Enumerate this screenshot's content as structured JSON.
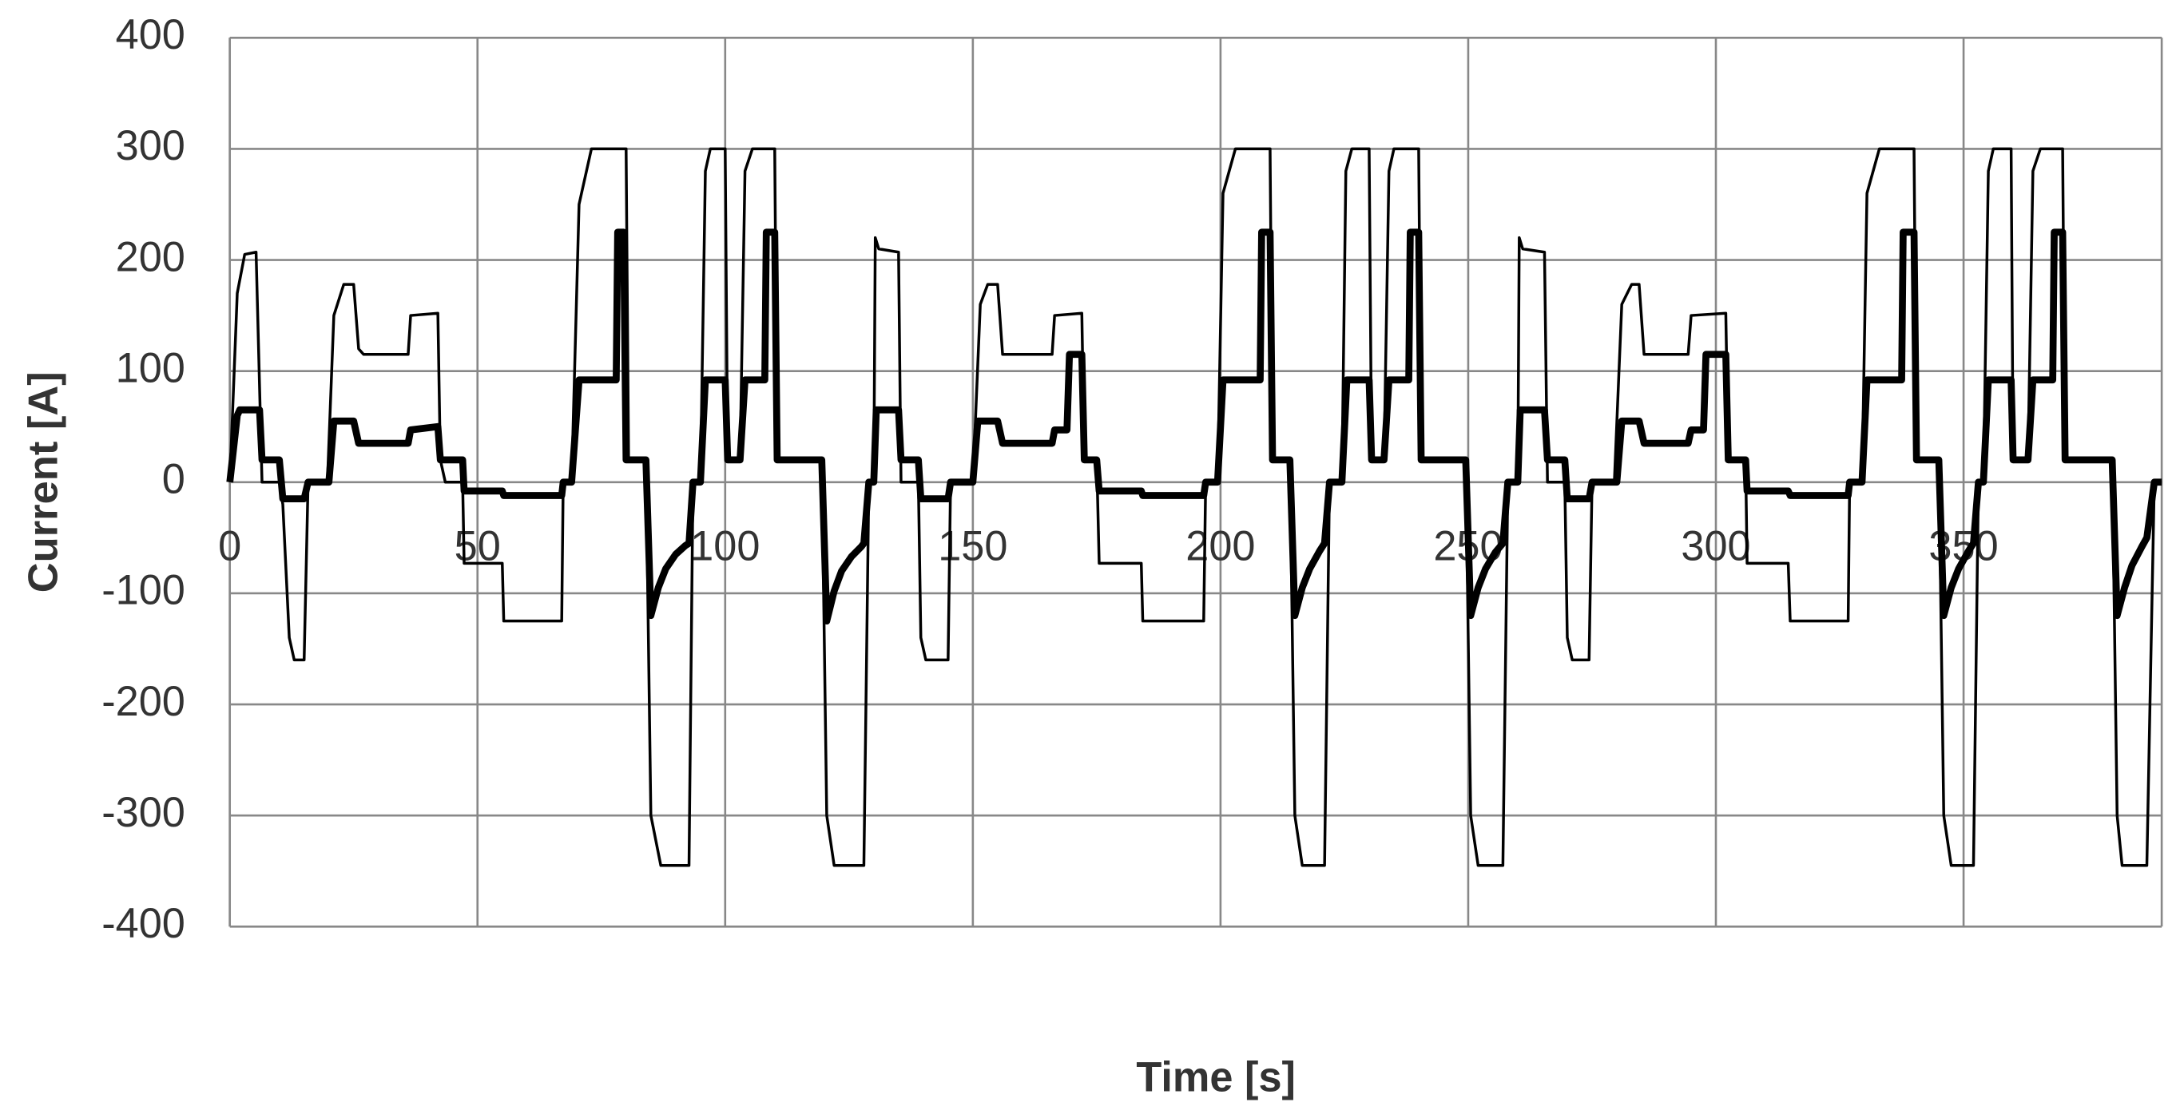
{
  "chart_data": {
    "type": "line",
    "x_label": "Time [s]",
    "y_label": "Current [A]",
    "xlim": [
      0,
      390
    ],
    "ylim": [
      -400,
      400
    ],
    "xticks": [
      0,
      50,
      100,
      150,
      200,
      250,
      300,
      350
    ],
    "yticks": [
      -400,
      -300,
      -200,
      -100,
      0,
      100,
      200,
      300,
      400
    ],
    "grid": true,
    "series": [
      {
        "color": "#000000",
        "line_width": 2,
        "x": [
          0,
          1.5,
          3,
          5.3,
          6.5,
          10,
          10.7,
          12,
          13,
          15,
          15.8,
          19.7,
          21,
          23,
          25,
          26,
          27,
          36,
          36.5,
          42,
          42.5,
          43.5,
          47,
          47.3,
          55,
          55.3,
          67,
          67.3,
          69,
          70.5,
          73,
          80,
          80.5,
          84,
          85,
          87,
          92.7,
          93.5,
          95,
          96,
          97,
          100,
          100.5,
          103,
          104,
          105.5,
          110,
          110.5,
          119.5,
          120.5,
          122,
          128,
          129,
          130,
          130.3,
          131,
          135,
          135.5,
          139,
          139.5,
          140.5,
          145,
          145.5,
          150,
          151.5,
          153,
          155,
          156,
          166,
          166.5,
          172,
          172.5,
          175,
          175.5,
          184,
          184.3,
          196.6,
          197,
          199.4,
          200.5,
          203,
          210,
          210.5,
          214,
          215,
          216.5,
          221,
          222,
          224.5,
          225.3,
          226.5,
          230,
          230.5,
          233,
          234,
          235,
          240,
          240.5,
          249.5,
          250.5,
          252,
          257,
          258,
          260,
          260.3,
          261,
          265.4,
          266,
          269.5,
          270,
          271,
          274.4,
          275,
          279.5,
          281,
          283,
          284.5,
          285.5,
          294.4,
          295,
          302,
          302.5,
          306,
          306.3,
          314.6,
          315,
          326.7,
          327,
          329.5,
          330.5,
          333,
          340,
          340.5,
          345,
          346,
          347.5,
          352,
          353,
          354,
          355,
          356,
          359.6,
          360,
          363,
          364,
          365.5,
          370,
          370.5,
          380,
          381,
          382,
          387,
          388.5,
          390
        ],
        "values": [
          0,
          170,
          205,
          207,
          0,
          0,
          -20,
          -140,
          -160,
          -160,
          0,
          0,
          150,
          178,
          178,
          120,
          115,
          115,
          150,
          152,
          20,
          0,
          0,
          -73,
          -73,
          -125,
          -125,
          0,
          0,
          250,
          300,
          300,
          20,
          20,
          -300,
          -345,
          -345,
          0,
          0,
          280,
          300,
          300,
          20,
          20,
          280,
          300,
          300,
          20,
          20,
          -300,
          -345,
          -345,
          0,
          0,
          220,
          210,
          207,
          0,
          0,
          -140,
          -160,
          -160,
          0,
          0,
          160,
          178,
          178,
          115,
          115,
          150,
          152,
          20,
          20,
          -73,
          -73,
          -125,
          -125,
          0,
          0,
          260,
          300,
          300,
          20,
          20,
          -300,
          -345,
          -345,
          0,
          0,
          280,
          300,
          300,
          20,
          20,
          280,
          300,
          300,
          20,
          20,
          -300,
          -345,
          -345,
          0,
          0,
          220,
          210,
          207,
          0,
          0,
          -140,
          -160,
          -160,
          0,
          0,
          160,
          178,
          178,
          115,
          115,
          150,
          152,
          20,
          20,
          -73,
          -73,
          -125,
          -125,
          0,
          0,
          260,
          300,
          300,
          20,
          20,
          -300,
          -345,
          -345,
          0,
          0,
          280,
          300,
          300,
          20,
          20,
          280,
          300,
          300,
          20,
          20,
          -300,
          -345,
          -345,
          0,
          0
        ]
      },
      {
        "color": "#000000",
        "line_width": 5,
        "x": [
          0,
          1.5,
          2,
          6,
          6.5,
          10,
          10.7,
          15,
          15.8,
          20,
          21,
          25,
          26,
          36,
          36.5,
          42,
          42.5,
          47,
          47.3,
          55,
          55.3,
          67,
          67.3,
          69,
          70.5,
          78,
          78.3,
          79.5,
          80,
          84,
          85,
          86.5,
          88,
          90,
          92,
          92.7,
          93.5,
          95,
          96,
          100,
          100.5,
          103,
          104,
          108,
          108.3,
          110,
          110.5,
          119.5,
          120.5,
          122,
          123.5,
          125.5,
          127.5,
          128,
          129,
          130,
          130.5,
          135,
          135.5,
          139,
          139.5,
          145,
          145.5,
          150,
          151,
          155,
          156,
          166,
          166.5,
          169,
          169.5,
          172,
          172.5,
          175,
          175.5,
          184,
          184.3,
          196.6,
          197,
          199.4,
          200.5,
          208,
          208.3,
          210,
          210.5,
          214,
          215,
          216.5,
          218,
          220,
          221,
          222,
          224.5,
          225.5,
          230,
          230.5,
          233,
          234,
          238,
          238.3,
          240,
          240.5,
          249.5,
          250.5,
          252,
          253.5,
          255.5,
          257,
          258,
          260,
          260.5,
          265.4,
          266,
          269.5,
          270,
          274.4,
          275,
          280,
          281,
          284.5,
          285.5,
          294.4,
          295,
          297.5,
          298,
          302,
          302.5,
          306,
          306.3,
          314.6,
          315,
          326.7,
          327,
          329.5,
          330.5,
          337.5,
          337.8,
          340,
          340.5,
          345,
          346,
          347.5,
          349,
          351,
          352,
          353,
          354,
          355,
          359.6,
          360,
          363,
          364,
          368,
          368.3,
          370,
          370.5,
          380,
          381,
          382.5,
          384,
          386,
          387,
          388.5,
          390
        ],
        "values": [
          0,
          60,
          65,
          65,
          20,
          20,
          -15,
          -15,
          0,
          0,
          55,
          55,
          35,
          35,
          47,
          50,
          20,
          20,
          -8,
          -8,
          -12,
          -12,
          0,
          0,
          92,
          92,
          225,
          225,
          20,
          20,
          -120,
          -95,
          -78,
          -65,
          -57,
          -55,
          0,
          0,
          92,
          92,
          20,
          20,
          92,
          92,
          225,
          225,
          20,
          20,
          -125,
          -98,
          -80,
          -67,
          -58,
          -55,
          0,
          0,
          65,
          65,
          20,
          20,
          -15,
          -15,
          0,
          0,
          55,
          55,
          35,
          35,
          47,
          47,
          115,
          115,
          20,
          20,
          -8,
          -8,
          -12,
          -12,
          0,
          0,
          92,
          92,
          225,
          225,
          20,
          20,
          -120,
          -95,
          -78,
          -62,
          -55,
          0,
          0,
          92,
          92,
          20,
          20,
          92,
          92,
          225,
          225,
          20,
          20,
          -120,
          -95,
          -78,
          -63,
          -55,
          0,
          0,
          65,
          65,
          20,
          20,
          -15,
          -15,
          0,
          0,
          55,
          55,
          35,
          35,
          47,
          47,
          115,
          115,
          20,
          20,
          -8,
          -8,
          -12,
          -12,
          0,
          0,
          92,
          92,
          225,
          225,
          20,
          20,
          -120,
          -95,
          -78,
          -62,
          -55,
          0,
          0,
          92,
          92,
          20,
          20,
          92,
          92,
          225,
          225,
          20,
          20,
          -120,
          -95,
          -75,
          -58,
          -50,
          0,
          0
        ]
      }
    ]
  }
}
